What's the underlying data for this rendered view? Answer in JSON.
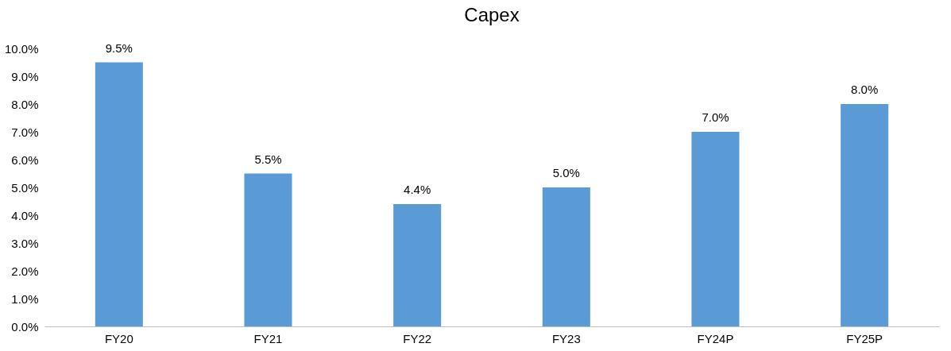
{
  "chart_data": {
    "type": "bar",
    "title": "Capex",
    "categories": [
      "FY20",
      "FY21",
      "FY22",
      "FY23",
      "FY24P",
      "FY25P"
    ],
    "values": [
      9.5,
      5.5,
      4.4,
      5.0,
      7.0,
      8.0
    ],
    "color": "#5b9bd5",
    "value_labels": [
      "9.5%",
      "5.5%",
      "4.4%",
      "5.0%",
      "7.0%",
      "8.0%"
    ],
    "ylim": [
      0,
      10
    ],
    "yticks": [
      {
        "value": 0,
        "label": "0.0%"
      },
      {
        "value": 1,
        "label": "1.0%"
      },
      {
        "value": 2,
        "label": "2.0%"
      },
      {
        "value": 3,
        "label": "3.0%"
      },
      {
        "value": 4,
        "label": "4.0%"
      },
      {
        "value": 5,
        "label": "5.0%"
      },
      {
        "value": 6,
        "label": "6.0%"
      },
      {
        "value": 7,
        "label": "7.0%"
      },
      {
        "value": 8,
        "label": "8.0%"
      },
      {
        "value": 9,
        "label": "9.0%"
      },
      {
        "value": 10,
        "label": "10.0%"
      }
    ],
    "grid": false
  }
}
